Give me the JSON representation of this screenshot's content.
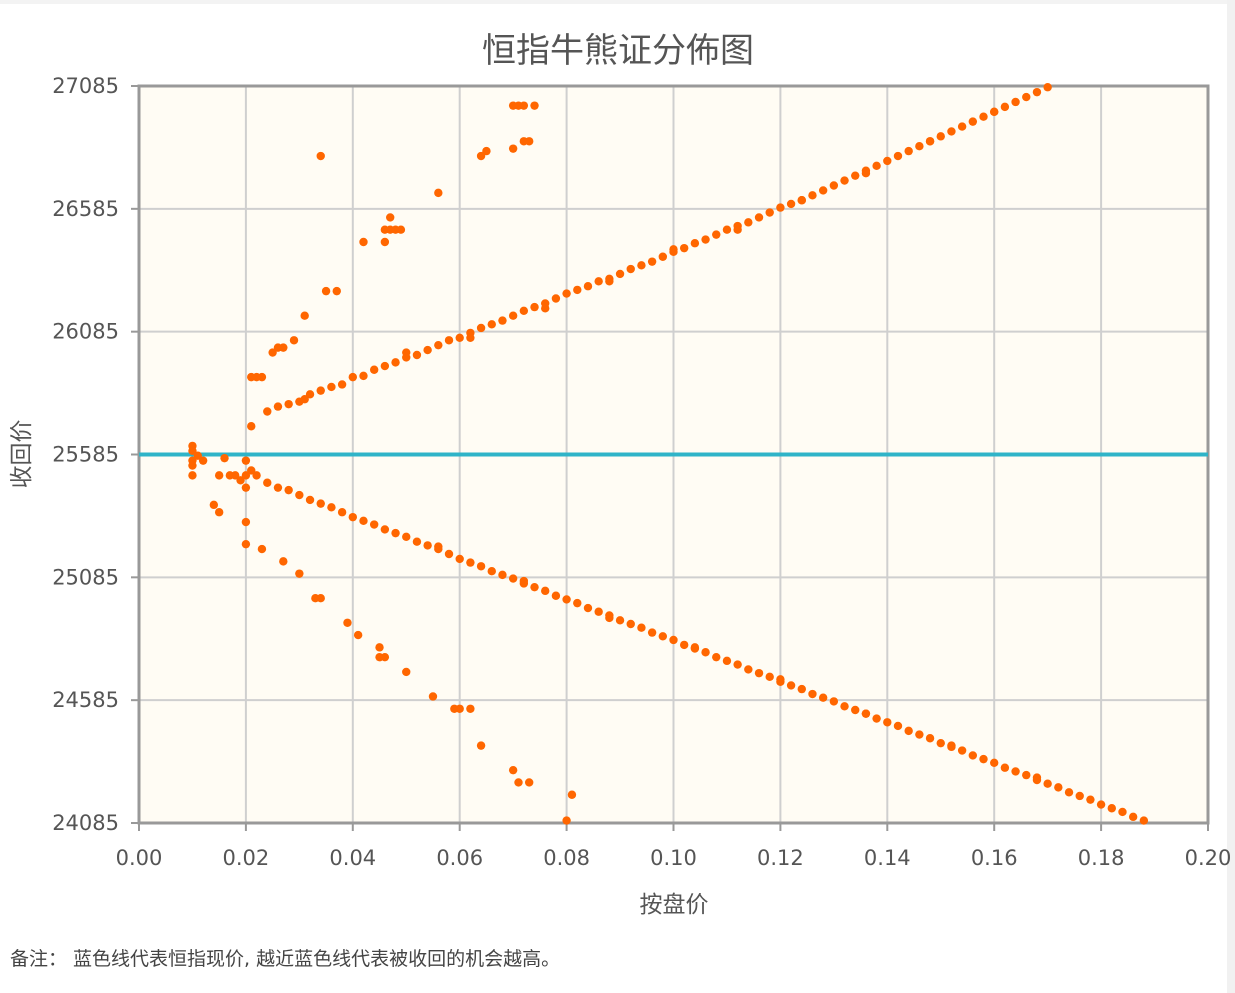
{
  "chart_data": {
    "type": "scatter",
    "title": "恒指牛熊证分佈图",
    "xlabel": "按盘价",
    "ylabel": "收回价",
    "xlim": [
      0.0,
      0.2
    ],
    "ylim": [
      24085,
      27085
    ],
    "x_ticks": [
      "0.00",
      "0.02",
      "0.04",
      "0.06",
      "0.08",
      "0.10",
      "0.12",
      "0.14",
      "0.16",
      "0.18",
      "0.20"
    ],
    "y_ticks": [
      "24085",
      "24585",
      "25085",
      "25585",
      "26085",
      "26585",
      "27085"
    ],
    "grid": true,
    "reference_line": {
      "y": 25585,
      "color": "#2fb4c8"
    },
    "series": [
      {
        "color": "#ff6600",
        "points": [
          [
            0.01,
            25620
          ],
          [
            0.01,
            25600
          ],
          [
            0.01,
            25560
          ],
          [
            0.01,
            25540
          ],
          [
            0.01,
            25500
          ],
          [
            0.011,
            25580
          ],
          [
            0.012,
            25560
          ],
          [
            0.014,
            25380
          ],
          [
            0.015,
            25350
          ],
          [
            0.015,
            25500
          ],
          [
            0.016,
            25570
          ],
          [
            0.017,
            25500
          ],
          [
            0.018,
            25500
          ],
          [
            0.019,
            25480
          ],
          [
            0.02,
            25500
          ],
          [
            0.02,
            25450
          ],
          [
            0.02,
            25310
          ],
          [
            0.02,
            25560
          ],
          [
            0.021,
            25700
          ],
          [
            0.021,
            25900
          ],
          [
            0.022,
            25900
          ],
          [
            0.023,
            25900
          ],
          [
            0.025,
            26000
          ],
          [
            0.026,
            26020
          ],
          [
            0.027,
            26020
          ],
          [
            0.029,
            26050
          ],
          [
            0.031,
            26150
          ],
          [
            0.035,
            26250
          ],
          [
            0.037,
            26250
          ],
          [
            0.042,
            26450
          ],
          [
            0.046,
            26450
          ],
          [
            0.046,
            26500
          ],
          [
            0.047,
            26500
          ],
          [
            0.047,
            26550
          ],
          [
            0.048,
            26500
          ],
          [
            0.049,
            26500
          ],
          [
            0.034,
            26800
          ],
          [
            0.056,
            26650
          ],
          [
            0.064,
            26800
          ],
          [
            0.065,
            26820
          ],
          [
            0.07,
            26830
          ],
          [
            0.07,
            27005
          ],
          [
            0.071,
            27005
          ],
          [
            0.072,
            27005
          ],
          [
            0.072,
            26860
          ],
          [
            0.073,
            26860
          ],
          [
            0.074,
            27005
          ],
          [
            0.024,
            25760
          ],
          [
            0.026,
            25780
          ],
          [
            0.028,
            25790
          ],
          [
            0.03,
            25800
          ],
          [
            0.031,
            25810
          ],
          [
            0.032,
            25830
          ],
          [
            0.034,
            25845
          ],
          [
            0.036,
            25860
          ],
          [
            0.038,
            25870
          ],
          [
            0.04,
            25900
          ],
          [
            0.042,
            25905
          ],
          [
            0.044,
            25930
          ],
          [
            0.046,
            25945
          ],
          [
            0.048,
            25960
          ],
          [
            0.05,
            25980
          ],
          [
            0.052,
            25990
          ],
          [
            0.054,
            26010
          ],
          [
            0.056,
            26030
          ],
          [
            0.058,
            26050
          ],
          [
            0.06,
            26060
          ],
          [
            0.062,
            26080
          ],
          [
            0.064,
            26100
          ],
          [
            0.066,
            26115
          ],
          [
            0.068,
            26130
          ],
          [
            0.07,
            26150
          ],
          [
            0.072,
            26170
          ],
          [
            0.074,
            26185
          ],
          [
            0.076,
            26200
          ],
          [
            0.078,
            26220
          ],
          [
            0.08,
            26240
          ],
          [
            0.082,
            26255
          ],
          [
            0.084,
            26270
          ],
          [
            0.086,
            26290
          ],
          [
            0.088,
            26300
          ],
          [
            0.09,
            26320
          ],
          [
            0.092,
            26340
          ],
          [
            0.094,
            26355
          ],
          [
            0.096,
            26370
          ],
          [
            0.098,
            26390
          ],
          [
            0.1,
            26410
          ],
          [
            0.102,
            26425
          ],
          [
            0.104,
            26445
          ],
          [
            0.106,
            26460
          ],
          [
            0.108,
            26480
          ],
          [
            0.11,
            26500
          ],
          [
            0.112,
            26515
          ],
          [
            0.114,
            26530
          ],
          [
            0.116,
            26550
          ],
          [
            0.118,
            26570
          ],
          [
            0.12,
            26590
          ],
          [
            0.122,
            26605
          ],
          [
            0.124,
            26620
          ],
          [
            0.126,
            26640
          ],
          [
            0.128,
            26660
          ],
          [
            0.13,
            26680
          ],
          [
            0.132,
            26700
          ],
          [
            0.134,
            26720
          ],
          [
            0.136,
            26740
          ],
          [
            0.138,
            26760
          ],
          [
            0.14,
            26780
          ],
          [
            0.142,
            26800
          ],
          [
            0.144,
            26820
          ],
          [
            0.146,
            26840
          ],
          [
            0.148,
            26860
          ],
          [
            0.15,
            26880
          ],
          [
            0.152,
            26900
          ],
          [
            0.154,
            26920
          ],
          [
            0.156,
            26940
          ],
          [
            0.158,
            26960
          ],
          [
            0.16,
            26980
          ],
          [
            0.162,
            27000
          ],
          [
            0.164,
            27020
          ],
          [
            0.166,
            27040
          ],
          [
            0.168,
            27060
          ],
          [
            0.17,
            27080
          ],
          [
            0.05,
            26000
          ],
          [
            0.062,
            26060
          ],
          [
            0.076,
            26180
          ],
          [
            0.088,
            26290
          ],
          [
            0.1,
            26420
          ],
          [
            0.112,
            26500
          ],
          [
            0.124,
            26620
          ],
          [
            0.136,
            26730
          ],
          [
            0.148,
            26860
          ],
          [
            0.16,
            26980
          ],
          [
            0.021,
            25520
          ],
          [
            0.022,
            25500
          ],
          [
            0.024,
            25470
          ],
          [
            0.026,
            25450
          ],
          [
            0.028,
            25440
          ],
          [
            0.03,
            25420
          ],
          [
            0.032,
            25400
          ],
          [
            0.034,
            25385
          ],
          [
            0.036,
            25370
          ],
          [
            0.038,
            25350
          ],
          [
            0.04,
            25330
          ],
          [
            0.042,
            25315
          ],
          [
            0.044,
            25300
          ],
          [
            0.046,
            25280
          ],
          [
            0.048,
            25265
          ],
          [
            0.05,
            25250
          ],
          [
            0.052,
            25230
          ],
          [
            0.054,
            25215
          ],
          [
            0.056,
            25200
          ],
          [
            0.058,
            25180
          ],
          [
            0.06,
            25160
          ],
          [
            0.062,
            25145
          ],
          [
            0.064,
            25130
          ],
          [
            0.066,
            25110
          ],
          [
            0.068,
            25095
          ],
          [
            0.07,
            25080
          ],
          [
            0.072,
            25060
          ],
          [
            0.074,
            25045
          ],
          [
            0.076,
            25030
          ],
          [
            0.078,
            25010
          ],
          [
            0.08,
            24995
          ],
          [
            0.082,
            24980
          ],
          [
            0.084,
            24960
          ],
          [
            0.086,
            24945
          ],
          [
            0.088,
            24930
          ],
          [
            0.09,
            24910
          ],
          [
            0.092,
            24895
          ],
          [
            0.094,
            24880
          ],
          [
            0.096,
            24860
          ],
          [
            0.098,
            24845
          ],
          [
            0.1,
            24830
          ],
          [
            0.102,
            24810
          ],
          [
            0.104,
            24795
          ],
          [
            0.106,
            24780
          ],
          [
            0.108,
            24760
          ],
          [
            0.11,
            24745
          ],
          [
            0.112,
            24730
          ],
          [
            0.114,
            24710
          ],
          [
            0.116,
            24695
          ],
          [
            0.118,
            24680
          ],
          [
            0.12,
            24660
          ],
          [
            0.122,
            24645
          ],
          [
            0.124,
            24630
          ],
          [
            0.126,
            24610
          ],
          [
            0.128,
            24595
          ],
          [
            0.13,
            24580
          ],
          [
            0.132,
            24560
          ],
          [
            0.134,
            24545
          ],
          [
            0.136,
            24530
          ],
          [
            0.138,
            24510
          ],
          [
            0.14,
            24495
          ],
          [
            0.142,
            24480
          ],
          [
            0.144,
            24460
          ],
          [
            0.146,
            24445
          ],
          [
            0.148,
            24430
          ],
          [
            0.15,
            24410
          ],
          [
            0.152,
            24395
          ],
          [
            0.154,
            24380
          ],
          [
            0.156,
            24360
          ],
          [
            0.158,
            24345
          ],
          [
            0.16,
            24330
          ],
          [
            0.162,
            24310
          ],
          [
            0.164,
            24295
          ],
          [
            0.166,
            24280
          ],
          [
            0.168,
            24260
          ],
          [
            0.17,
            24245
          ],
          [
            0.172,
            24230
          ],
          [
            0.174,
            24210
          ],
          [
            0.176,
            24195
          ],
          [
            0.178,
            24180
          ],
          [
            0.18,
            24160
          ],
          [
            0.182,
            24145
          ],
          [
            0.184,
            24130
          ],
          [
            0.186,
            24110
          ],
          [
            0.188,
            24095
          ],
          [
            0.056,
            25210
          ],
          [
            0.072,
            25070
          ],
          [
            0.088,
            24920
          ],
          [
            0.104,
            24800
          ],
          [
            0.12,
            24670
          ],
          [
            0.136,
            24530
          ],
          [
            0.152,
            24400
          ],
          [
            0.168,
            24270
          ],
          [
            0.02,
            25220
          ],
          [
            0.023,
            25200
          ],
          [
            0.027,
            25150
          ],
          [
            0.03,
            25100
          ],
          [
            0.033,
            25000
          ],
          [
            0.034,
            25000
          ],
          [
            0.039,
            24900
          ],
          [
            0.041,
            24850
          ],
          [
            0.045,
            24800
          ],
          [
            0.045,
            24760
          ],
          [
            0.046,
            24760
          ],
          [
            0.05,
            24700
          ],
          [
            0.055,
            24600
          ],
          [
            0.059,
            24550
          ],
          [
            0.06,
            24550
          ],
          [
            0.062,
            24550
          ],
          [
            0.064,
            24400
          ],
          [
            0.07,
            24300
          ],
          [
            0.071,
            24250
          ],
          [
            0.073,
            24250
          ],
          [
            0.08,
            24095
          ],
          [
            0.081,
            24200
          ]
        ]
      }
    ]
  },
  "footnote": "备注： 蓝色线代表恒指现价, 越近蓝色线代表被收回的机会越高。"
}
